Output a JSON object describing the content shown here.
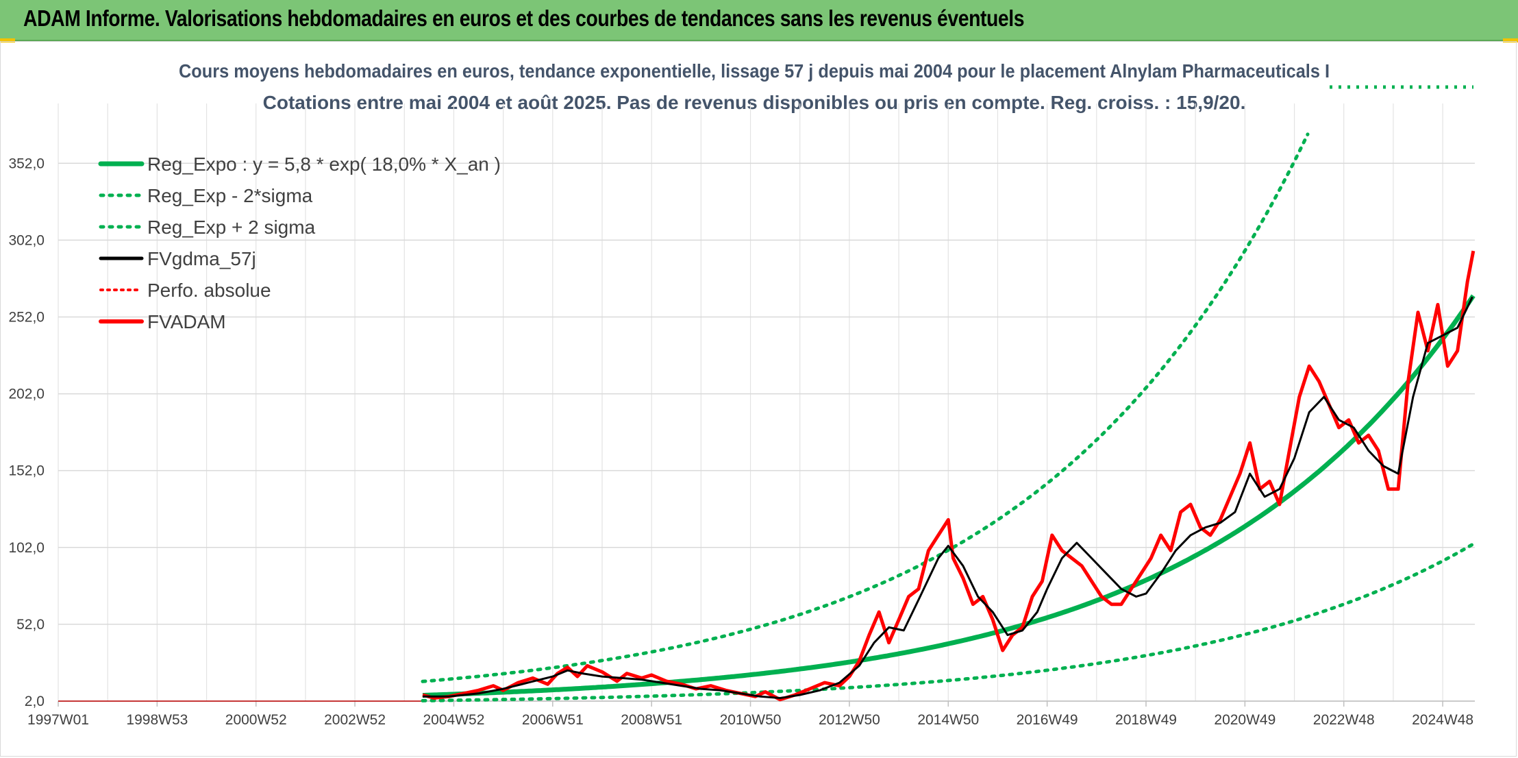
{
  "header": {
    "title": "ADAM Informe. Valorisations hebdomadaires en euros et des courbes de tendances sans les revenus éventuels"
  },
  "colors": {
    "header_bg": "#7cc576",
    "trend": "#00b050",
    "price": "#ff0000",
    "smooth": "#000000",
    "grid": "#d9d9d9"
  },
  "chart_data": {
    "type": "line",
    "title": "Cours moyens hebdomadaires en euros, tendance exponentielle, lissage 57 j depuis mai 2004 pour le placement Alnylam Pharmaceuticals I",
    "subtitle": "Cotations entre mai 2004 et août 2025. Pas de revenus disponibles ou pris en compte. Reg. croiss. : 15,9/20.",
    "xlabel": "",
    "ylabel": "",
    "x_ticks": [
      "1997W01",
      "1998W53",
      "2000W52",
      "2002W52",
      "2004W52",
      "2006W51",
      "2008W51",
      "2010W50",
      "2012W50",
      "2014W50",
      "2016W49",
      "2018W49",
      "2020W49",
      "2022W48",
      "2024W48"
    ],
    "y_ticks": [
      "2,0",
      "52,0",
      "102,0",
      "152,0",
      "202,0",
      "252,0",
      "302,0",
      "352,0"
    ],
    "xlim": [
      1997.0,
      2025.65
    ],
    "ylim": [
      2,
      382
    ],
    "grid": true,
    "legend_position": "top-left",
    "regression": {
      "a": 5.8,
      "rate": 0.18,
      "x0": 2004.37,
      "sigma_factor": 2.55
    },
    "series": [
      {
        "name": "Reg_Expo : y = 5,8 * exp( 18,0% *  X_an )",
        "style": "solid",
        "color": "#00b050"
      },
      {
        "name": "Reg_Exp - 2*sigma",
        "style": "dotted",
        "color": "#00b050"
      },
      {
        "name": "Reg_Exp + 2 sigma",
        "style": "dotted",
        "color": "#00b050"
      },
      {
        "name": "FVgdma_57j",
        "style": "solid",
        "color": "#000000",
        "x": [
          2004.37,
          2004.9,
          2005.5,
          2006.0,
          2006.5,
          2007.0,
          2007.3,
          2007.6,
          2008.0,
          2008.4,
          2008.8,
          2009.2,
          2009.6,
          2010.0,
          2010.4,
          2010.8,
          2011.2,
          2011.6,
          2012.0,
          2012.4,
          2012.8,
          2013.2,
          2013.5,
          2013.8,
          2014.1,
          2014.4,
          2014.8,
          2015.0,
          2015.3,
          2015.6,
          2015.9,
          2016.2,
          2016.5,
          2016.8,
          2017.0,
          2017.3,
          2017.6,
          2017.9,
          2018.2,
          2018.5,
          2018.8,
          2019.0,
          2019.3,
          2019.6,
          2019.9,
          2020.2,
          2020.5,
          2020.8,
          2021.1,
          2021.4,
          2021.7,
          2022.0,
          2022.3,
          2022.6,
          2022.9,
          2023.2,
          2023.5,
          2023.8,
          2024.1,
          2024.4,
          2024.7,
          2025.0,
          2025.3,
          2025.6
        ],
        "values": [
          5,
          5,
          7,
          10,
          14,
          18,
          22,
          20,
          18,
          17,
          16,
          14,
          12,
          10,
          9,
          7,
          5,
          4,
          6,
          9,
          14,
          25,
          40,
          50,
          48,
          68,
          95,
          103,
          90,
          70,
          60,
          45,
          48,
          60,
          75,
          95,
          105,
          95,
          85,
          75,
          70,
          72,
          85,
          100,
          110,
          115,
          118,
          125,
          150,
          135,
          140,
          160,
          190,
          200,
          185,
          180,
          165,
          155,
          150,
          200,
          235,
          240,
          245,
          265
        ]
      },
      {
        "name": "Perfo. absolue",
        "style": "dotted",
        "color": "#ff0000"
      },
      {
        "name": "FVADAM",
        "style": "solid",
        "color": "#ff0000",
        "x": [
          2004.37,
          2004.6,
          2004.9,
          2005.2,
          2005.5,
          2005.8,
          2006.0,
          2006.3,
          2006.6,
          2006.9,
          2007.1,
          2007.3,
          2007.5,
          2007.7,
          2008.0,
          2008.3,
          2008.5,
          2008.8,
          2009.0,
          2009.3,
          2009.6,
          2009.9,
          2010.2,
          2010.5,
          2010.8,
          2011.1,
          2011.3,
          2011.6,
          2011.9,
          2012.2,
          2012.5,
          2012.8,
          2013.0,
          2013.2,
          2013.4,
          2013.6,
          2013.8,
          2014.0,
          2014.2,
          2014.4,
          2014.6,
          2014.8,
          2015.0,
          2015.1,
          2015.3,
          2015.5,
          2015.7,
          2015.9,
          2016.1,
          2016.3,
          2016.5,
          2016.7,
          2016.9,
          2017.1,
          2017.3,
          2017.5,
          2017.7,
          2017.9,
          2018.1,
          2018.3,
          2018.5,
          2018.7,
          2018.9,
          2019.1,
          2019.3,
          2019.5,
          2019.7,
          2019.9,
          2020.1,
          2020.3,
          2020.5,
          2020.7,
          2020.9,
          2021.1,
          2021.3,
          2021.5,
          2021.7,
          2021.9,
          2022.1,
          2022.3,
          2022.5,
          2022.7,
          2022.9,
          2023.1,
          2023.3,
          2023.5,
          2023.7,
          2023.9,
          2024.1,
          2024.3,
          2024.5,
          2024.7,
          2024.9,
          2025.1,
          2025.3,
          2025.5,
          2025.62
        ],
        "values": [
          6,
          4,
          5,
          7,
          9,
          12,
          9,
          14,
          17,
          13,
          20,
          24,
          18,
          25,
          21,
          15,
          20,
          17,
          19,
          15,
          13,
          10,
          12,
          9,
          7,
          5,
          8,
          3,
          6,
          10,
          14,
          12,
          18,
          28,
          45,
          60,
          40,
          55,
          70,
          75,
          100,
          110,
          120,
          95,
          82,
          65,
          70,
          55,
          35,
          45,
          50,
          70,
          80,
          110,
          100,
          95,
          90,
          80,
          70,
          65,
          65,
          75,
          85,
          95,
          110,
          100,
          125,
          130,
          115,
          110,
          120,
          135,
          150,
          170,
          140,
          145,
          130,
          165,
          200,
          220,
          210,
          195,
          180,
          185,
          170,
          175,
          165,
          140,
          140,
          210,
          255,
          230,
          260,
          220,
          230,
          275,
          295
        ]
      }
    ]
  }
}
